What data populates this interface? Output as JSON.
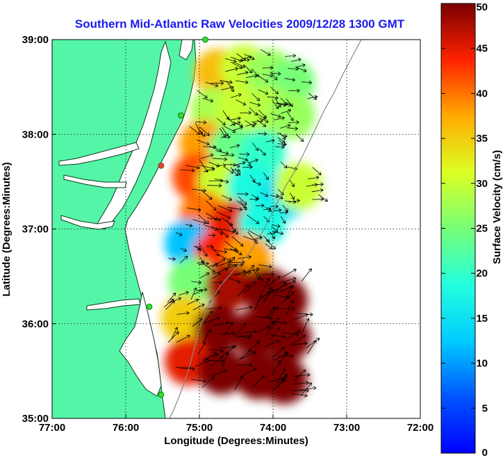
{
  "chart_data": {
    "type": "heatmap",
    "title": "Southern Mid-Atlantic Raw Velocities 2009/12/28 1300 GMT",
    "xlabel": "Longitude (Degrees:Minutes)",
    "ylabel": "Latitude (Degrees:Minutes)",
    "x_ticks": [
      {
        "value": -77,
        "label": "77:00"
      },
      {
        "value": -76,
        "label": "76:00"
      },
      {
        "value": -75,
        "label": "75:00"
      },
      {
        "value": -74,
        "label": "74:00"
      },
      {
        "value": -73,
        "label": "73:00"
      },
      {
        "value": -72,
        "label": "72:00"
      }
    ],
    "y_ticks": [
      {
        "value": 35,
        "label": "35:00"
      },
      {
        "value": 36,
        "label": "36:00"
      },
      {
        "value": 37,
        "label": "37:00"
      },
      {
        "value": 38,
        "label": "38:00"
      },
      {
        "value": 39,
        "label": "39:00"
      }
    ],
    "xlim": [
      -77,
      -72
    ],
    "ylim": [
      35,
      39
    ],
    "grid": true,
    "colorbar": {
      "label": "Surface Velocity (cm/s)",
      "range": [
        0,
        50
      ],
      "ticks": [
        {
          "value": 0,
          "label": "0"
        },
        {
          "value": 5,
          "label": "5"
        },
        {
          "value": 10,
          "label": "10"
        },
        {
          "value": 15,
          "label": "15"
        },
        {
          "value": 20,
          "label": "20"
        },
        {
          "value": 25,
          "label": "25"
        },
        {
          "value": 30,
          "label": "30"
        },
        {
          "value": 35,
          "label": "35"
        },
        {
          "value": 40,
          "label": "40"
        },
        {
          "value": 45,
          "label": "45"
        },
        {
          "value": 50,
          "label": "50"
        }
      ],
      "colormap": "jet"
    },
    "velocity_regions": [
      {
        "lon": -74.75,
        "lat": 38.65,
        "speed": 36
      },
      {
        "lon": -74.4,
        "lat": 38.7,
        "speed": 30
      },
      {
        "lon": -74.05,
        "lat": 38.65,
        "speed": 27
      },
      {
        "lon": -73.75,
        "lat": 38.55,
        "speed": 25
      },
      {
        "lon": -74.8,
        "lat": 38.25,
        "speed": 28
      },
      {
        "lon": -74.45,
        "lat": 38.25,
        "speed": 30
      },
      {
        "lon": -74.05,
        "lat": 38.25,
        "speed": 29
      },
      {
        "lon": -73.75,
        "lat": 38.2,
        "speed": 27
      },
      {
        "lon": -74.95,
        "lat": 37.9,
        "speed": 38
      },
      {
        "lon": -74.55,
        "lat": 37.85,
        "speed": 24
      },
      {
        "lon": -74.15,
        "lat": 37.8,
        "speed": 20
      },
      {
        "lon": -75.05,
        "lat": 37.55,
        "speed": 42
      },
      {
        "lon": -74.7,
        "lat": 37.5,
        "speed": 30
      },
      {
        "lon": -74.3,
        "lat": 37.45,
        "speed": 18
      },
      {
        "lon": -73.85,
        "lat": 37.35,
        "speed": 15
      },
      {
        "lon": -73.65,
        "lat": 37.45,
        "speed": 30
      },
      {
        "lon": -74.95,
        "lat": 37.15,
        "speed": 40
      },
      {
        "lon": -74.55,
        "lat": 37.05,
        "speed": 45
      },
      {
        "lon": -74.15,
        "lat": 37.05,
        "speed": 18
      },
      {
        "lon": -75.15,
        "lat": 36.85,
        "speed": 12
      },
      {
        "lon": -74.75,
        "lat": 36.75,
        "speed": 44
      },
      {
        "lon": -74.35,
        "lat": 36.7,
        "speed": 38
      },
      {
        "lon": -75.1,
        "lat": 36.45,
        "speed": 25
      },
      {
        "lon": -74.6,
        "lat": 36.4,
        "speed": 48
      },
      {
        "lon": -74.1,
        "lat": 36.35,
        "speed": 50
      },
      {
        "lon": -73.85,
        "lat": 36.25,
        "speed": 50
      },
      {
        "lon": -75.2,
        "lat": 36.05,
        "speed": 35
      },
      {
        "lon": -74.75,
        "lat": 35.95,
        "speed": 50
      },
      {
        "lon": -74.25,
        "lat": 35.9,
        "speed": 50
      },
      {
        "lon": -73.8,
        "lat": 35.85,
        "speed": 50
      },
      {
        "lon": -75.15,
        "lat": 35.6,
        "speed": 45
      },
      {
        "lon": -74.7,
        "lat": 35.5,
        "speed": 50
      },
      {
        "lon": -74.2,
        "lat": 35.45,
        "speed": 50
      },
      {
        "lon": -73.85,
        "lat": 35.4,
        "speed": 50
      }
    ],
    "radar_stations": [
      {
        "lon": -74.92,
        "lat": 39.0,
        "status": "active"
      },
      {
        "lon": -75.25,
        "lat": 38.2,
        "status": "active"
      },
      {
        "lon": -75.52,
        "lat": 37.67,
        "status": "offline"
      },
      {
        "lon": -75.68,
        "lat": 36.18,
        "status": "active"
      },
      {
        "lon": -75.52,
        "lat": 35.25,
        "status": "active"
      }
    ],
    "colors": {
      "land": "#55f5a8",
      "station_active": "#2ee02e",
      "station_offline": "#ff3a2a",
      "title": "#1a1aee"
    }
  }
}
